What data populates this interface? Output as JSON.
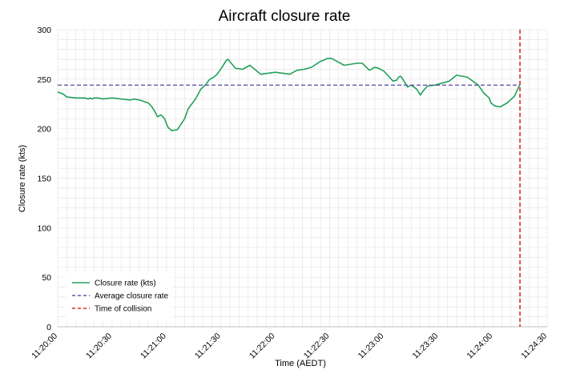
{
  "chart_data": {
    "type": "line",
    "title": "Aircraft closure rate",
    "xlabel": "Time (AEDT)",
    "ylabel": "Closure rate (kts)",
    "ylim": [
      0,
      300
    ],
    "yticks": [
      "0",
      "50",
      "100",
      "150",
      "200",
      "250",
      "300"
    ],
    "xlim": [
      "11:20:00",
      "11:24:30"
    ],
    "xticks": [
      "11:20:00",
      "11:20:30",
      "11:21:00",
      "11:21:30",
      "11:22:00",
      "11:22:30",
      "11:23:00",
      "11:23:30",
      "11:24:00",
      "11:24:30"
    ],
    "grid": true,
    "legend_placement": "bottom-left",
    "series": [
      {
        "name": "Closure rate (kts)",
        "style": "solid",
        "color": "#22a05a",
        "x": [
          "11:20:00",
          "11:20:03",
          "11:20:05",
          "11:20:10",
          "11:20:15",
          "11:20:17",
          "11:20:18",
          "11:20:19",
          "11:20:20",
          "11:20:22",
          "11:20:25",
          "11:20:30",
          "11:20:40",
          "11:20:42",
          "11:20:45",
          "11:20:50",
          "11:20:52",
          "11:20:53",
          "11:20:54",
          "11:20:55",
          "11:20:57",
          "11:20:59",
          "11:21:00",
          "11:21:01",
          "11:21:03",
          "11:21:06",
          "11:21:10",
          "11:21:12",
          "11:21:16",
          "11:21:19",
          "11:21:22",
          "11:21:23",
          "11:21:24",
          "11:21:25",
          "11:21:26",
          "11:21:28",
          "11:21:31",
          "11:21:33",
          "11:21:34",
          "11:21:38",
          "11:21:42",
          "11:21:46",
          "11:21:52",
          "11:22:00",
          "11:22:08",
          "11:22:12",
          "11:22:12.5",
          "11:22:16",
          "11:22:20",
          "11:22:25",
          "11:22:29",
          "11:22:31",
          "11:22:32",
          "11:22:38",
          "11:22:45",
          "11:22:48",
          "11:22:52",
          "11:22:55",
          "11:22:57",
          "11:23:00",
          "11:23:03",
          "11:23:05",
          "11:23:07",
          "11:23:08",
          "11:23:09",
          "11:23:10",
          "11:23:13",
          "11:23:15",
          "11:23:18",
          "11:23:20",
          "11:23:22",
          "11:23:24",
          "11:23:28",
          "11:23:32",
          "11:23:36",
          "11:23:40",
          "11:23:46",
          "11:23:52",
          "11:23:55",
          "11:23:58",
          "11:23:59",
          "11:24:01",
          "11:24:04",
          "11:24:08",
          "11:24:12",
          "11:24:15"
        ],
        "values": [
          237,
          235,
          232,
          231,
          231,
          230,
          231,
          230,
          231,
          231,
          230,
          231,
          229,
          230,
          229,
          226,
          222,
          219,
          216,
          212,
          214,
          210,
          205,
          201,
          198,
          199,
          210,
          220,
          230,
          240,
          245,
          248,
          250,
          251,
          252,
          255,
          263,
          269,
          270,
          261,
          260,
          264,
          255,
          257,
          255,
          259,
          259,
          260,
          262,
          268,
          271,
          271,
          270,
          264,
          266,
          266,
          259,
          262,
          261,
          258,
          252,
          248,
          249,
          252,
          253,
          251,
          242,
          244,
          240,
          234,
          239,
          243,
          244,
          246,
          248,
          254,
          252,
          244,
          236,
          231,
          226,
          223,
          222,
          226,
          233,
          245
        ]
      },
      {
        "name": "Average closure rate",
        "style": "dashed",
        "color": "#6659a6",
        "x": [
          "11:20:00",
          "11:24:15"
        ],
        "values": [
          244,
          244
        ]
      },
      {
        "name": "Time of collision",
        "style": "dashed",
        "color": "#d92b2b",
        "orientation": "vertical",
        "x_at": "11:24:15"
      }
    ]
  }
}
